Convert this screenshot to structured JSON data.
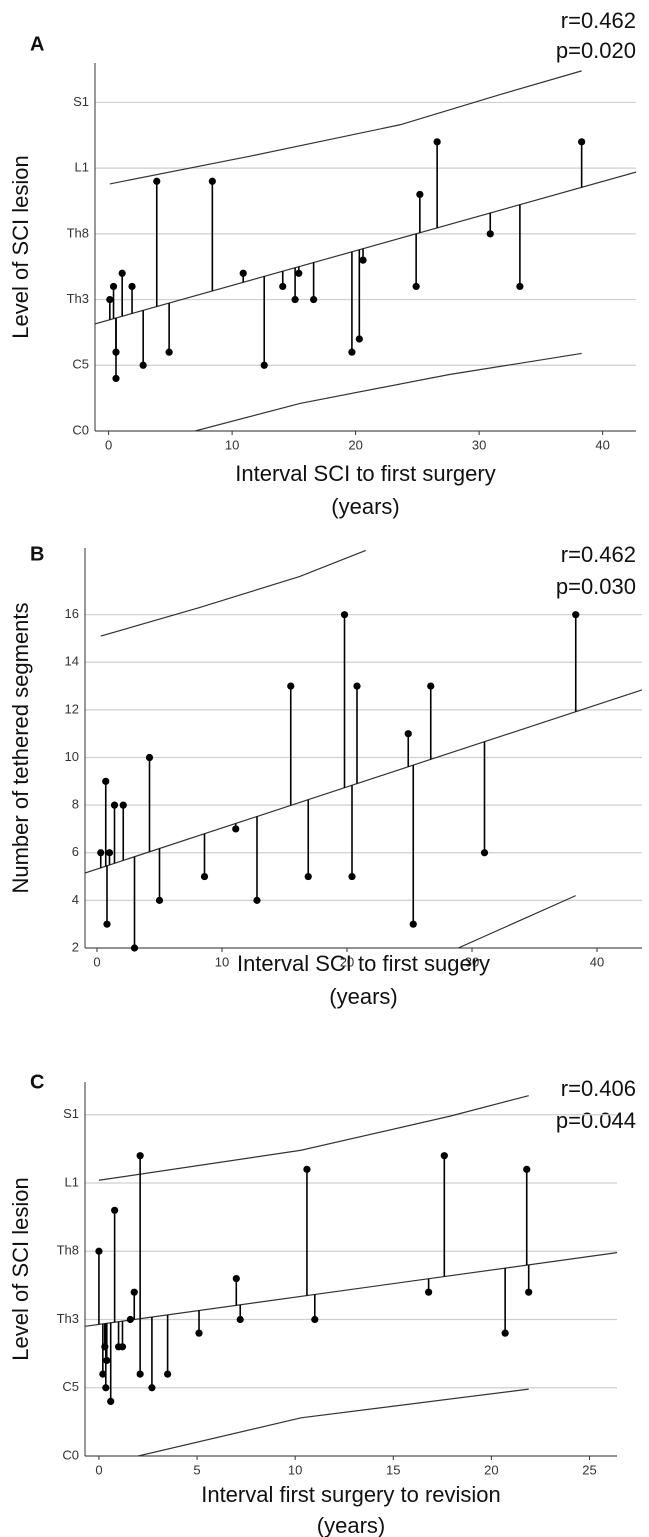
{
  "chart_data": [
    {
      "type": "scatter",
      "panel": "A",
      "annotations": [
        "r=0.462",
        "p=0.020"
      ],
      "xlabel": [
        "Interval SCI to first surgery",
        "(years)"
      ],
      "ylabel": "Level of SCI lesion",
      "xlim": [
        -1.1,
        42.7
      ],
      "ylim": [
        0,
        28
      ],
      "xticks": [
        0,
        10,
        20,
        30,
        40
      ],
      "yticks": [
        {
          "value": 0,
          "label": "C0"
        },
        {
          "value": 5,
          "label": "C5"
        },
        {
          "value": 10,
          "label": "Th3"
        },
        {
          "value": 15,
          "label": "Th8"
        },
        {
          "value": 20,
          "label": "L1"
        },
        {
          "value": 25,
          "label": "S1"
        }
      ],
      "grid": true,
      "color": "#000000",
      "x": [
        0.1,
        0.4,
        0.6,
        0.6,
        1.1,
        1.9,
        2.8,
        3.9,
        4.9,
        8.4,
        10.9,
        12.6,
        14.1,
        15.1,
        15.4,
        16.6,
        19.7,
        20.3,
        20.6,
        24.9,
        25.2,
        26.6,
        30.9,
        33.3,
        38.3
      ],
      "y": [
        10,
        11,
        6,
        4,
        12,
        11,
        5,
        19,
        6,
        19,
        12,
        5,
        11,
        10,
        12,
        10,
        6,
        7,
        13,
        11,
        18,
        22,
        15,
        11,
        22
      ],
      "fit": {
        "x": [
          -1.1,
          42.7
        ],
        "y": [
          8.15,
          19.7
        ]
      },
      "upper_band": {
        "x": [
          0.1,
          11.4,
          23.6,
          31.7,
          38.3
        ],
        "y": [
          18.8,
          20.9,
          23.3,
          25.6,
          27.4
        ]
      },
      "lower_band": {
        "x": [
          7.0,
          15.5,
          27.6,
          38.3
        ],
        "y": [
          0,
          2.1,
          4.3,
          5.9
        ]
      }
    },
    {
      "type": "scatter",
      "panel": "B",
      "annotations": [
        "r=0.462",
        "p=0.030"
      ],
      "xlabel": [
        "Interval SCI to first sugery",
        "(years)"
      ],
      "ylabel": "Number of tethered segments",
      "xlim": [
        -0.96,
        43.6
      ],
      "ylim": [
        2,
        18.8
      ],
      "xticks": [
        0,
        10,
        20,
        30,
        40
      ],
      "yticks": [
        2,
        4,
        6,
        8,
        10,
        12,
        14,
        16
      ],
      "grid": true,
      "color": "#000000",
      "x": [
        0.3,
        0.7,
        0.8,
        1.0,
        1.4,
        2.1,
        3.0,
        4.2,
        5.0,
        8.6,
        11.1,
        12.8,
        15.5,
        16.9,
        19.8,
        20.4,
        20.8,
        24.9,
        25.3,
        26.7,
        31.0,
        38.3
      ],
      "y": [
        6,
        9,
        3,
        6,
        8,
        8,
        2,
        10,
        4,
        5,
        7,
        4,
        13,
        5,
        16,
        5,
        13,
        11,
        3,
        13,
        6,
        16
      ],
      "fit": {
        "x": [
          -0.96,
          43.6
        ],
        "y": [
          5.15,
          12.84
        ]
      },
      "upper_band": {
        "x": [
          0.3,
          8.2,
          16.2,
          21.5
        ],
        "y": [
          15.1,
          16.3,
          17.6,
          18.7
        ]
      },
      "lower_band": {
        "x": [
          28.9,
          38.3
        ],
        "y": [
          2,
          4.2
        ]
      }
    },
    {
      "type": "scatter",
      "panel": "C",
      "annotations": [
        "r=0.406",
        "p=0.044"
      ],
      "xlabel": [
        "Interval first surgery to revision",
        "(years)"
      ],
      "ylabel": "Level of SCI lesion",
      "xlim": [
        -0.71,
        26.4
      ],
      "ylim": [
        0,
        27.4
      ],
      "xticks": [
        0,
        5,
        10,
        15,
        20,
        25
      ],
      "yticks": [
        {
          "value": 0,
          "label": "C0"
        },
        {
          "value": 5,
          "label": "C5"
        },
        {
          "value": 10,
          "label": "Th3"
        },
        {
          "value": 15,
          "label": "Th8"
        },
        {
          "value": 20,
          "label": "L1"
        },
        {
          "value": 25,
          "label": "S1"
        }
      ],
      "grid": true,
      "color": "#000000",
      "x": [
        0,
        0.2,
        0.3,
        0.35,
        0.4,
        0.6,
        0.8,
        1.0,
        1.2,
        1.6,
        1.8,
        2.1,
        2.1,
        2.7,
        3.5,
        5.1,
        7.0,
        7.2,
        10.6,
        11.0,
        16.8,
        17.6,
        20.7,
        21.8,
        21.9
      ],
      "y": [
        15,
        6,
        8,
        5,
        7,
        4,
        18,
        8,
        8,
        10,
        12,
        6,
        22,
        5,
        6,
        9,
        13,
        10,
        21,
        10,
        12,
        22,
        9,
        21,
        12
      ],
      "fit": {
        "x": [
          -0.71,
          26.4
        ],
        "y": [
          9.5,
          14.9
        ]
      },
      "upper_band": {
        "x": [
          0,
          10.3,
          17.9,
          21.9
        ],
        "y": [
          20.2,
          22.4,
          24.9,
          26.4
        ]
      },
      "lower_band": {
        "x": [
          2.0,
          10.3,
          21.9
        ],
        "y": [
          0,
          2.8,
          4.9
        ]
      }
    }
  ]
}
